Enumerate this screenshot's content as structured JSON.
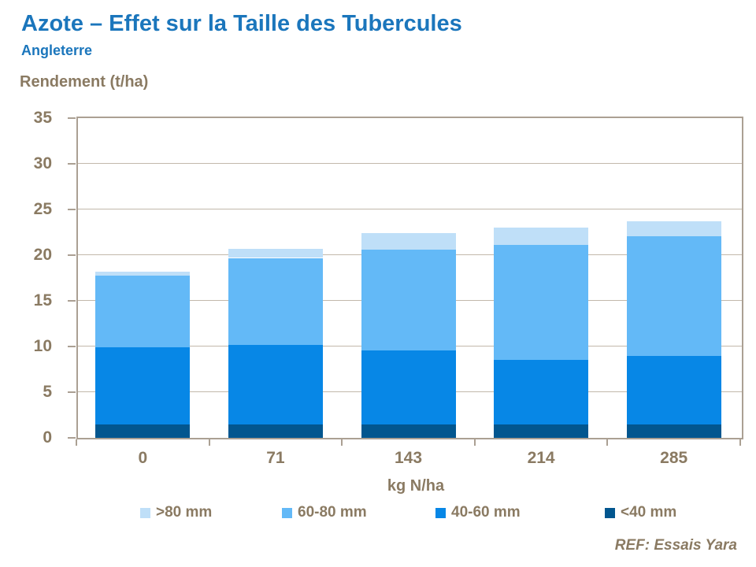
{
  "header": {
    "title": "Azote – Effet sur la Taille des Tubercules",
    "subtitle": "Angleterre"
  },
  "footer": {
    "reference": "REF: Essais Yara"
  },
  "colors": {
    "title_blue": "#1B76BC",
    "text_brown": "#8A7A62",
    "gridline": "#C2B8AB",
    "axis": "#ABA093"
  },
  "chart_data": {
    "type": "bar",
    "stacked": true,
    "title": "",
    "ylabel": "Rendement (t/ha)",
    "xlabel": "kg N/ha",
    "categories": [
      "0",
      "71",
      "143",
      "214",
      "285"
    ],
    "series": [
      {
        "name": "<40 mm",
        "color": "#02568F",
        "values": [
          1.5,
          1.5,
          1.5,
          1.5,
          1.5
        ]
      },
      {
        "name": "40-60 mm",
        "color": "#0787E6",
        "values": [
          8.4,
          8.7,
          8.1,
          7.0,
          7.5
        ]
      },
      {
        "name": "60-80 mm",
        "color": "#63B9F7",
        "values": [
          7.9,
          9.5,
          11.0,
          12.6,
          13.1
        ]
      },
      {
        "name": ">80 mm",
        "color": "#BFDFF8",
        "values": [
          0.4,
          1.0,
          1.8,
          1.9,
          1.6
        ]
      }
    ],
    "stack_totals": [
      18.2,
      20.7,
      22.4,
      23.0,
      23.7
    ],
    "ylim": [
      0,
      35
    ],
    "ytick_step": 5,
    "grid": true,
    "legend_position": "bottom",
    "legend_order": [
      ">80 mm",
      "60-80 mm",
      "40-60 mm",
      "<40 mm"
    ]
  }
}
